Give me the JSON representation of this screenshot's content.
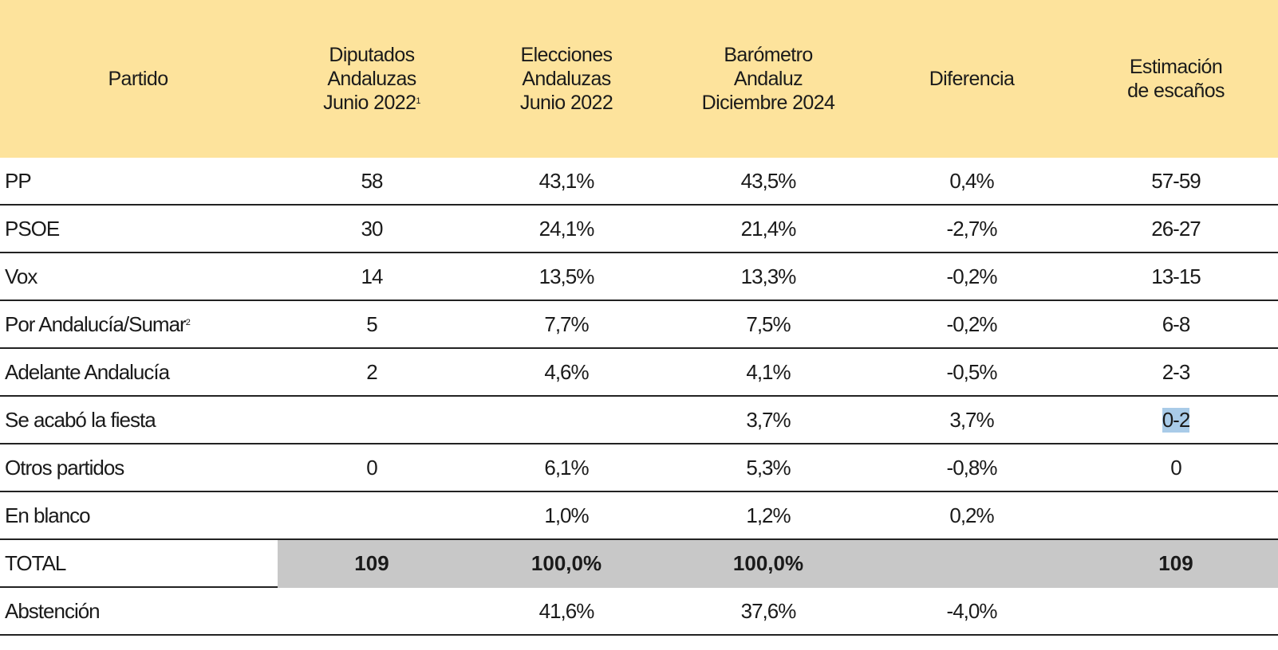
{
  "header": {
    "partido": "Partido",
    "diputados": [
      "Diputados",
      "Andaluzas",
      "Junio 2022"
    ],
    "diputados_sup": "1",
    "elecciones": [
      "Elecciones",
      "Andaluzas",
      "Junio 2022"
    ],
    "barometro": [
      "Barómetro",
      "Andaluz",
      "Diciembre 2024"
    ],
    "diferencia": "Diferencia",
    "estimacion": [
      "Estimación",
      "de escaños"
    ]
  },
  "rows": [
    {
      "name": "PP",
      "name_sup": "",
      "diputados": "58",
      "elecciones": "43,1%",
      "barometro": "43,5%",
      "diferencia": "0,4%",
      "estimacion": "57-59"
    },
    {
      "name": "PSOE",
      "name_sup": "",
      "diputados": "30",
      "elecciones": "24,1%",
      "barometro": "21,4%",
      "diferencia": "-2,7%",
      "estimacion": "26-27"
    },
    {
      "name": "Vox",
      "name_sup": "",
      "diputados": "14",
      "elecciones": "13,5%",
      "barometro": "13,3%",
      "diferencia": "-0,2%",
      "estimacion": "13-15"
    },
    {
      "name": "Por Andalucía/Sumar",
      "name_sup": "2",
      "diputados": "5",
      "elecciones": "7,7%",
      "barometro": "7,5%",
      "diferencia": "-0,2%",
      "estimacion": "6-8"
    },
    {
      "name": "Adelante Andalucía",
      "name_sup": "",
      "diputados": "2",
      "elecciones": "4,6%",
      "barometro": "4,1%",
      "diferencia": "-0,5%",
      "estimacion": "2-3"
    },
    {
      "name": "Se acabó la fiesta",
      "name_sup": "",
      "diputados": "",
      "elecciones": "",
      "barometro": "3,7%",
      "diferencia": "3,7%",
      "estimacion": "0-2"
    },
    {
      "name": "Otros partidos",
      "name_sup": "",
      "diputados": "0",
      "elecciones": "6,1%",
      "barometro": "5,3%",
      "diferencia": "-0,8%",
      "estimacion": "0"
    },
    {
      "name": "En blanco",
      "name_sup": "",
      "diputados": "",
      "elecciones": "1,0%",
      "barometro": "1,2%",
      "diferencia": "0,2%",
      "estimacion": ""
    }
  ],
  "total": {
    "name": "TOTAL",
    "diputados": "109",
    "elecciones": "100,0%",
    "barometro": "100,0%",
    "diferencia": "",
    "estimacion": "109"
  },
  "abstencion": {
    "name": "Abstención",
    "diputados": "",
    "elecciones": "41,6%",
    "barometro": "37,6%",
    "diferencia": "-4,0%",
    "estimacion": ""
  },
  "colors": {
    "header_bg": "#fde39c",
    "total_bg": "#c8c8c8",
    "selection": "#a9cbe8"
  }
}
